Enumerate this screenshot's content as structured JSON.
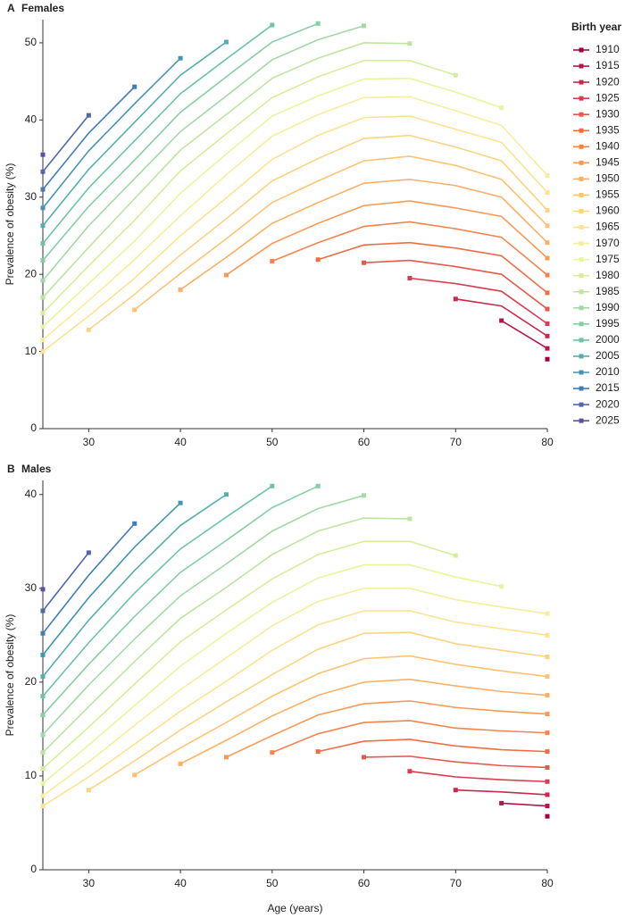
{
  "chart_data": [
    {
      "type": "line",
      "panel": "A",
      "title": "Females",
      "y_label": "Prevalence of obesity (%)",
      "legend_title": "Birth year",
      "x": [
        25,
        30,
        35,
        40,
        45,
        50,
        55,
        60,
        65,
        70,
        75,
        80
      ],
      "xlim": [
        25,
        80
      ],
      "xticks": [
        30,
        40,
        50,
        60,
        70,
        80
      ],
      "ylim": [
        0,
        53
      ],
      "yticks": [
        0,
        10,
        20,
        30,
        40,
        50
      ],
      "series": [
        {
          "name": "1910",
          "color": "#9e0142",
          "values": [
            null,
            null,
            null,
            null,
            null,
            null,
            null,
            null,
            null,
            null,
            null,
            9.0
          ]
        },
        {
          "name": "1915",
          "color": "#b3174a",
          "values": [
            null,
            null,
            null,
            null,
            null,
            null,
            null,
            null,
            null,
            null,
            14.0,
            10.4
          ]
        },
        {
          "name": "1920",
          "color": "#c72a4b",
          "values": [
            null,
            null,
            null,
            null,
            null,
            null,
            null,
            null,
            null,
            16.8,
            15.9,
            12.0
          ]
        },
        {
          "name": "1925",
          "color": "#d63e4f",
          "values": [
            null,
            null,
            null,
            null,
            null,
            null,
            null,
            null,
            19.5,
            18.8,
            17.8,
            13.6
          ]
        },
        {
          "name": "1930",
          "color": "#e45a49",
          "values": [
            null,
            null,
            null,
            null,
            null,
            null,
            null,
            21.5,
            21.8,
            21.0,
            20.0,
            15.5
          ]
        },
        {
          "name": "1935",
          "color": "#ee6e44",
          "values": [
            null,
            null,
            null,
            null,
            null,
            null,
            21.9,
            23.8,
            24.1,
            23.4,
            22.4,
            17.6
          ]
        },
        {
          "name": "1940",
          "color": "#f4844c",
          "values": [
            null,
            null,
            null,
            null,
            null,
            21.7,
            24.1,
            26.2,
            26.8,
            25.9,
            24.8,
            19.9
          ]
        },
        {
          "name": "1945",
          "color": "#f89a55",
          "values": [
            null,
            null,
            null,
            null,
            19.9,
            24.0,
            26.6,
            28.9,
            29.5,
            28.6,
            27.5,
            22.1
          ]
        },
        {
          "name": "1950",
          "color": "#fbb063",
          "values": [
            null,
            null,
            null,
            18.0,
            22.2,
            26.6,
            29.3,
            31.8,
            32.3,
            31.5,
            30.0,
            24.1
          ]
        },
        {
          "name": "1955",
          "color": "#fdc373",
          "values": [
            null,
            null,
            15.4,
            20.1,
            24.6,
            29.3,
            32.1,
            34.7,
            35.3,
            34.1,
            32.3,
            26.3
          ]
        },
        {
          "name": "1960",
          "color": "#fdd382",
          "values": [
            null,
            12.8,
            17.4,
            22.5,
            27.2,
            32.1,
            35.0,
            37.6,
            38.0,
            36.5,
            34.7,
            28.3
          ]
        },
        {
          "name": "1965",
          "color": "#fee28f",
          "values": [
            10.0,
            14.6,
            19.5,
            25.0,
            29.9,
            34.9,
            38.0,
            40.3,
            40.5,
            38.8,
            37.1,
            30.6
          ]
        },
        {
          "name": "1970",
          "color": "#f5ee9c",
          "values": [
            11.5,
            16.6,
            21.9,
            27.6,
            32.9,
            37.9,
            40.7,
            42.9,
            43.0,
            41.2,
            39.3,
            32.8
          ]
        },
        {
          "name": "1975",
          "color": "#e9f59d",
          "values": [
            13.2,
            18.8,
            24.3,
            30.5,
            35.6,
            40.5,
            43.1,
            45.3,
            45.4,
            43.6,
            41.6,
            null
          ]
        },
        {
          "name": "1980",
          "color": "#d6ee9b",
          "values": [
            15.0,
            21.1,
            27.0,
            33.4,
            38.2,
            42.9,
            45.6,
            47.7,
            47.7,
            45.8,
            null,
            null
          ]
        },
        {
          "name": "1985",
          "color": "#bde5a0",
          "values": [
            17.0,
            23.5,
            29.8,
            36.1,
            40.7,
            45.4,
            48.0,
            50.0,
            49.9,
            null,
            null,
            null
          ]
        },
        {
          "name": "1990",
          "color": "#a2d9a4",
          "values": [
            19.2,
            26.3,
            32.4,
            38.5,
            43.1,
            47.8,
            50.4,
            52.2,
            null,
            null,
            null,
            null
          ]
        },
        {
          "name": "1995",
          "color": "#86cea5",
          "values": [
            21.8,
            28.8,
            34.8,
            41.0,
            45.6,
            50.1,
            52.5,
            null,
            null,
            null,
            null,
            null
          ]
        },
        {
          "name": "2000",
          "color": "#6bc4a4",
          "values": [
            24.0,
            31.2,
            37.3,
            43.4,
            47.9,
            52.3,
            null,
            null,
            null,
            null,
            null,
            null
          ]
        },
        {
          "name": "2005",
          "color": "#54aead",
          "values": [
            26.3,
            33.6,
            39.7,
            45.8,
            50.1,
            null,
            null,
            null,
            null,
            null,
            null,
            null
          ]
        },
        {
          "name": "2010",
          "color": "#4295b4",
          "values": [
            28.6,
            36.0,
            42.1,
            48.0,
            null,
            null,
            null,
            null,
            null,
            null,
            null,
            null
          ]
        },
        {
          "name": "2015",
          "color": "#3f7cb8",
          "values": [
            31.0,
            38.3,
            44.3,
            null,
            null,
            null,
            null,
            null,
            null,
            null,
            null,
            null
          ]
        },
        {
          "name": "2020",
          "color": "#4f66ad",
          "values": [
            33.3,
            40.6,
            null,
            null,
            null,
            null,
            null,
            null,
            null,
            null,
            null,
            null
          ]
        },
        {
          "name": "2025",
          "color": "#5e4fa2",
          "values": [
            35.5,
            null,
            null,
            null,
            null,
            null,
            null,
            null,
            null,
            null,
            null,
            null
          ]
        }
      ]
    },
    {
      "type": "line",
      "panel": "B",
      "title": "Males",
      "y_label": "Prevalence of obesity (%)",
      "x_label": "Age (years)",
      "x": [
        25,
        30,
        35,
        40,
        45,
        50,
        55,
        60,
        65,
        70,
        75,
        80
      ],
      "xlim": [
        25,
        80
      ],
      "xticks": [
        30,
        40,
        50,
        60,
        70,
        80
      ],
      "ylim": [
        0,
        41.5
      ],
      "yticks": [
        0,
        10,
        20,
        30,
        40
      ],
      "series": [
        {
          "values": [
            null,
            null,
            null,
            null,
            null,
            null,
            null,
            null,
            null,
            null,
            null,
            5.7
          ]
        },
        {
          "values": [
            null,
            null,
            null,
            null,
            null,
            null,
            null,
            null,
            null,
            null,
            7.1,
            6.8
          ]
        },
        {
          "values": [
            null,
            null,
            null,
            null,
            null,
            null,
            null,
            null,
            null,
            8.5,
            8.3,
            8.0
          ]
        },
        {
          "values": [
            null,
            null,
            null,
            null,
            null,
            null,
            null,
            null,
            10.5,
            9.9,
            9.6,
            9.4
          ]
        },
        {
          "values": [
            null,
            null,
            null,
            null,
            null,
            null,
            null,
            12.0,
            12.1,
            11.5,
            11.1,
            10.9
          ]
        },
        {
          "values": [
            null,
            null,
            null,
            null,
            null,
            null,
            12.6,
            13.7,
            13.9,
            13.2,
            12.8,
            12.6
          ]
        },
        {
          "values": [
            null,
            null,
            null,
            null,
            null,
            12.5,
            14.5,
            15.7,
            15.9,
            15.1,
            14.8,
            14.6
          ]
        },
        {
          "values": [
            null,
            null,
            null,
            null,
            12.0,
            14.3,
            16.5,
            17.7,
            18.0,
            17.3,
            16.9,
            16.6
          ]
        },
        {
          "values": [
            null,
            null,
            null,
            11.3,
            13.8,
            16.4,
            18.6,
            20.0,
            20.3,
            19.6,
            19.0,
            18.6
          ]
        },
        {
          "values": [
            null,
            null,
            10.1,
            13.0,
            15.7,
            18.5,
            20.9,
            22.5,
            22.8,
            21.9,
            21.2,
            20.6
          ]
        },
        {
          "values": [
            null,
            8.5,
            11.6,
            14.9,
            17.9,
            20.8,
            23.5,
            25.2,
            25.3,
            24.1,
            23.4,
            22.7
          ]
        },
        {
          "values": [
            6.8,
            9.9,
            13.4,
            16.9,
            20.1,
            23.4,
            26.1,
            27.6,
            27.6,
            26.4,
            25.7,
            25.0
          ]
        },
        {
          "values": [
            7.9,
            11.5,
            15.4,
            19.2,
            22.6,
            26.0,
            28.6,
            30.0,
            30.0,
            28.8,
            28.0,
            27.3
          ]
        },
        {
          "values": [
            9.2,
            13.3,
            17.5,
            21.7,
            25.2,
            28.5,
            31.1,
            32.5,
            32.5,
            31.2,
            30.2,
            null
          ]
        },
        {
          "values": [
            10.8,
            15.2,
            19.8,
            24.3,
            27.7,
            31.0,
            33.6,
            35.0,
            35.0,
            33.5,
            null,
            null
          ]
        },
        {
          "values": [
            12.5,
            17.4,
            22.2,
            26.8,
            30.1,
            33.6,
            36.1,
            37.5,
            37.4,
            null,
            null,
            null
          ]
        },
        {
          "values": [
            14.4,
            19.7,
            24.6,
            29.2,
            32.6,
            36.1,
            38.5,
            39.9,
            null,
            null,
            null,
            null
          ]
        },
        {
          "values": [
            16.5,
            21.9,
            27.0,
            31.7,
            35.1,
            38.6,
            40.9,
            null,
            null,
            null,
            null,
            null
          ]
        },
        {
          "values": [
            18.5,
            24.2,
            29.5,
            34.2,
            37.6,
            40.9,
            null,
            null,
            null,
            null,
            null,
            null
          ]
        },
        {
          "values": [
            20.6,
            26.6,
            31.9,
            36.7,
            40.0,
            null,
            null,
            null,
            null,
            null,
            null,
            null
          ]
        },
        {
          "values": [
            22.9,
            29.0,
            34.4,
            39.1,
            null,
            null,
            null,
            null,
            null,
            null,
            null,
            null
          ]
        },
        {
          "values": [
            25.2,
            31.4,
            36.9,
            null,
            null,
            null,
            null,
            null,
            null,
            null,
            null,
            null
          ]
        },
        {
          "values": [
            27.6,
            33.8,
            null,
            null,
            null,
            null,
            null,
            null,
            null,
            null,
            null,
            null
          ]
        },
        {
          "values": [
            29.9,
            null,
            null,
            null,
            null,
            null,
            null,
            null,
            null,
            null,
            null,
            null
          ]
        }
      ]
    }
  ]
}
